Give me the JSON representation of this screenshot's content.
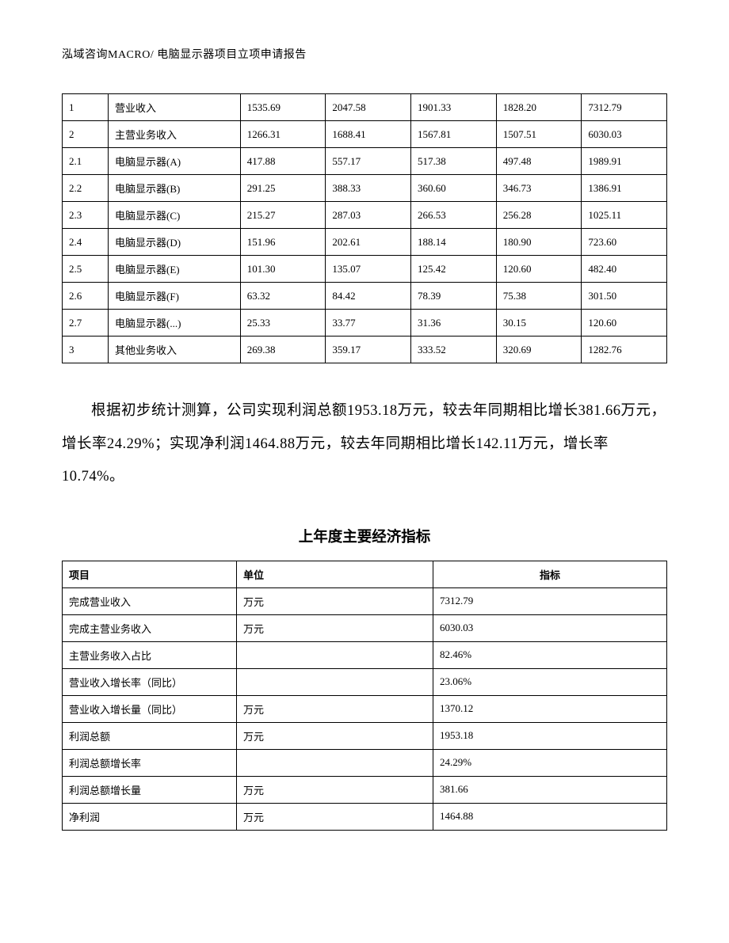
{
  "header": "泓域咨询MACRO/    电脑显示器项目立项申请报告",
  "table1": {
    "rows": [
      [
        "1",
        "营业收入",
        "1535.69",
        "2047.58",
        "1901.33",
        "1828.20",
        "7312.79"
      ],
      [
        "2",
        "主营业务收入",
        "1266.31",
        "1688.41",
        "1567.81",
        "1507.51",
        "6030.03"
      ],
      [
        "2.1",
        "电脑显示器(A)",
        "417.88",
        "557.17",
        "517.38",
        "497.48",
        "1989.91"
      ],
      [
        "2.2",
        "电脑显示器(B)",
        "291.25",
        "388.33",
        "360.60",
        "346.73",
        "1386.91"
      ],
      [
        "2.3",
        "电脑显示器(C)",
        "215.27",
        "287.03",
        "266.53",
        "256.28",
        "1025.11"
      ],
      [
        "2.4",
        "电脑显示器(D)",
        "151.96",
        "202.61",
        "188.14",
        "180.90",
        "723.60"
      ],
      [
        "2.5",
        "电脑显示器(E)",
        "101.30",
        "135.07",
        "125.42",
        "120.60",
        "482.40"
      ],
      [
        "2.6",
        "电脑显示器(F)",
        "63.32",
        "84.42",
        "78.39",
        "75.38",
        "301.50"
      ],
      [
        "2.7",
        "电脑显示器(...)",
        "25.33",
        "33.77",
        "31.36",
        "30.15",
        "120.60"
      ],
      [
        "3",
        "其他业务收入",
        "269.38",
        "359.17",
        "333.52",
        "320.69",
        "1282.76"
      ]
    ]
  },
  "paragraph": "根据初步统计测算，公司实现利润总额1953.18万元，较去年同期相比增长381.66万元，增长率24.29%；实现净利润1464.88万元，较去年同期相比增长142.11万元，增长率10.74%。",
  "section_title": "上年度主要经济指标",
  "table2": {
    "header": [
      "项目",
      "单位",
      "指标"
    ],
    "rows": [
      [
        "完成营业收入",
        "万元",
        "7312.79"
      ],
      [
        "完成主营业务收入",
        "万元",
        "6030.03"
      ],
      [
        "主营业务收入占比",
        "",
        "82.46%"
      ],
      [
        "营业收入增长率（同比）",
        "",
        "23.06%"
      ],
      [
        "营业收入增长量（同比）",
        "万元",
        "1370.12"
      ],
      [
        "利润总额",
        "万元",
        "1953.18"
      ],
      [
        "利润总额增长率",
        "",
        "24.29%"
      ],
      [
        "利润总额增长量",
        "万元",
        "381.66"
      ],
      [
        "净利润",
        "万元",
        "1464.88"
      ]
    ]
  }
}
